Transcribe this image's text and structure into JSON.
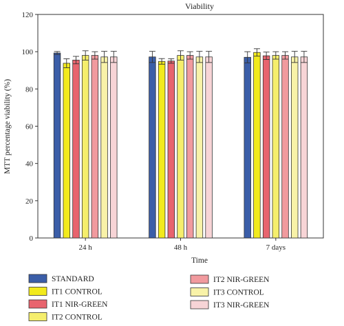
{
  "chart_data": {
    "type": "bar",
    "title": "Viability",
    "xlabel": "Time",
    "ylabel": "MTT percentage viability (%)",
    "ylim": [
      0,
      120
    ],
    "yticks": [
      0,
      20,
      40,
      60,
      80,
      100,
      120
    ],
    "categories": [
      "24 h",
      "48 h",
      "7 days"
    ],
    "grid": false,
    "legend_position": "bottom",
    "series": [
      {
        "name": "STANDARD",
        "color": "#3b5ea8",
        "values": [
          99.3,
          97.2,
          97.0
        ],
        "errors": [
          0.8,
          3.0,
          3.0
        ]
      },
      {
        "name": "IT1 CONTROL",
        "color": "#f2ea1c",
        "values": [
          93.8,
          94.8,
          99.6
        ],
        "errors": [
          2.4,
          1.5,
          2.0
        ]
      },
      {
        "name": "IT1 NIR-GREEN",
        "color": "#e8646e",
        "values": [
          95.5,
          95.0,
          97.8
        ],
        "errors": [
          2.0,
          1.2,
          2.0
        ]
      },
      {
        "name": "IT2 CONTROL",
        "color": "#f5ee6c",
        "values": [
          98.0,
          98.0,
          98.0
        ],
        "errors": [
          2.5,
          2.5,
          2.0
        ]
      },
      {
        "name": "IT2 NIR-GREEN",
        "color": "#f19a9e",
        "values": [
          98.0,
          98.0,
          98.0
        ],
        "errors": [
          2.0,
          2.0,
          2.0
        ]
      },
      {
        "name": "IT3 CONTROL",
        "color": "#f8f2a8",
        "values": [
          97.2,
          97.2,
          97.2
        ],
        "errors": [
          3.0,
          3.0,
          3.0
        ]
      },
      {
        "name": "IT3 NIR-GREEN",
        "color": "#f7d4d6",
        "values": [
          97.2,
          97.2,
          97.2
        ],
        "errors": [
          3.0,
          3.0,
          3.0
        ]
      }
    ]
  }
}
